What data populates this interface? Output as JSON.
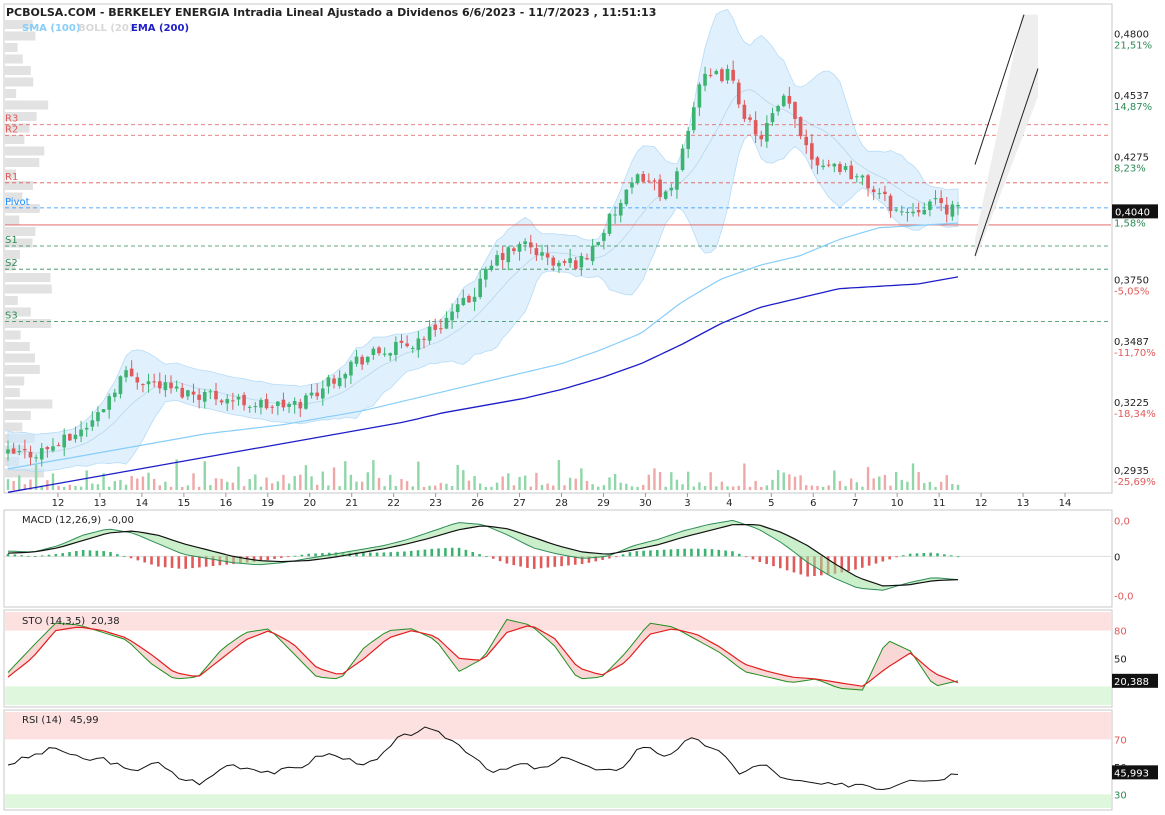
{
  "header": {
    "title": "PCBOLSA.COM - BERKELEY ENERGIA Intradia Lineal Ajustado a Dividenos 6/6/2023 - 11/7/2023 , 11:51:13",
    "legend": [
      {
        "label": "SMA (100)",
        "color": "#87cefa"
      },
      {
        "label": "BOLL (20)",
        "color": "#d8d8d8"
      },
      {
        "label": "EMA (200)",
        "color": "#1e1ec8"
      }
    ]
  },
  "colors": {
    "up": "#3cb371",
    "down": "#e05a5a",
    "sma": "#87cefa",
    "ema": "#1e1ec8",
    "boll": "#cfe8fb",
    "pivot_line": "#1e90ff",
    "res_line": "#e05a5a",
    "sup_line": "#2e8b57"
  },
  "chart_data": [
    {
      "type": "candlestick",
      "title": "BERKELEY ENERGIA",
      "x_tick_labels": [
        "12",
        "13",
        "14",
        "15",
        "16",
        "19",
        "20",
        "21",
        "22",
        "23",
        "26",
        "27",
        "28",
        "29",
        "30",
        "3",
        "4",
        "5",
        "6",
        "7",
        "10",
        "11",
        "12",
        "13",
        "14"
      ],
      "ylim": [
        0.285,
        0.49
      ],
      "y_ticks": [
        {
          "price": "0,4800",
          "pct": "21,51%",
          "value": 0.48,
          "pct_color": "#2e8b57"
        },
        {
          "price": "0,4537",
          "pct": "14,87%",
          "value": 0.4537,
          "pct_color": "#2e8b57"
        },
        {
          "price": "0,4275",
          "pct": "8,23%",
          "value": 0.4275,
          "pct_color": "#2e8b57"
        },
        {
          "price": "0,4040",
          "pct": "1,58%",
          "value": 0.404,
          "pct_color": "#2e8b57"
        },
        {
          "price": "0,3750",
          "pct": "-5,05%",
          "value": 0.375,
          "pct_color": "#e05a5a"
        },
        {
          "price": "0,3487",
          "pct": "-11,70%",
          "value": 0.3487,
          "pct_color": "#e05a5a"
        },
        {
          "price": "0,3225",
          "pct": "-18,34%",
          "value": 0.3225,
          "pct_color": "#e05a5a"
        },
        {
          "price": "0,2935",
          "pct": "-25,69%",
          "value": 0.2935,
          "pct_color": "#e05a5a"
        }
      ],
      "last_price_label": "0,4040",
      "last_price": 0.404,
      "reference_price": 0.3982,
      "pivot_levels": [
        {
          "name": "R3",
          "value": 0.441,
          "kind": "res"
        },
        {
          "name": "R2",
          "value": 0.4365,
          "kind": "res"
        },
        {
          "name": "R1",
          "value": 0.4162,
          "kind": "res"
        },
        {
          "name": "Pivot",
          "value": 0.4055,
          "kind": "pivot"
        },
        {
          "name": "S1",
          "value": 0.3892,
          "kind": "sup"
        },
        {
          "name": "S2",
          "value": 0.3793,
          "kind": "sup"
        },
        {
          "name": "S3",
          "value": 0.3569,
          "kind": "sup"
        }
      ],
      "session_keypoints": [
        0.3,
        0.301,
        0.306,
        0.315,
        0.335,
        0.331,
        0.327,
        0.326,
        0.323,
        0.321,
        0.321,
        0.33,
        0.34,
        0.344,
        0.347,
        0.356,
        0.366,
        0.384,
        0.39,
        0.381,
        0.383,
        0.402,
        0.42,
        0.409,
        0.459,
        0.463,
        0.434,
        0.452,
        0.426,
        0.423,
        0.414,
        0.403,
        0.408,
        0.404
      ],
      "sma100_keypoints": [
        0.294,
        0.297,
        0.3,
        0.303,
        0.306,
        0.309,
        0.311,
        0.313,
        0.316,
        0.319,
        0.323,
        0.327,
        0.331,
        0.335,
        0.339,
        0.345,
        0.352,
        0.365,
        0.375,
        0.381,
        0.385,
        0.392,
        0.397,
        0.398,
        0.399
      ],
      "ema200_keypoints": [
        0.284,
        0.287,
        0.29,
        0.293,
        0.296,
        0.299,
        0.302,
        0.305,
        0.308,
        0.311,
        0.314,
        0.318,
        0.321,
        0.324,
        0.328,
        0.333,
        0.339,
        0.347,
        0.356,
        0.363,
        0.367,
        0.371,
        0.372,
        0.373,
        0.376
      ]
    },
    {
      "type": "line",
      "title": "MACD (12,26,9)",
      "value_label": "-0,00",
      "ylim": [
        -0.0045,
        0.004
      ],
      "y_tick_labels": [
        "0,0",
        "0",
        "-0,0"
      ],
      "macd_keypoints": [
        0.0005,
        0.0004,
        0.001,
        0.002,
        0.0026,
        0.0022,
        0.0012,
        0.0002,
        -0.0002,
        -0.0006,
        -0.0008,
        -0.0006,
        -0.0002,
        0.0002,
        0.0006,
        0.001,
        0.0016,
        0.0024,
        0.0032,
        0.003,
        0.002,
        0.0008,
        0.0002,
        -0.0002,
        0.0,
        0.001,
        0.0016,
        0.0024,
        0.003,
        0.0034,
        0.0026,
        0.0012,
        -0.0006,
        -0.002,
        -0.003,
        -0.0032,
        -0.0025,
        -0.002,
        -0.0022
      ],
      "signal_keypoints": [
        0.0003,
        0.0004,
        0.0008,
        0.0015,
        0.0022,
        0.0024,
        0.002,
        0.0012,
        0.0006,
        0.0,
        -0.0004,
        -0.0005,
        -0.0004,
        -0.0001,
        0.0003,
        0.0007,
        0.0012,
        0.0018,
        0.0025,
        0.0029,
        0.0026,
        0.0018,
        0.001,
        0.0004,
        0.0002,
        0.0006,
        0.0011,
        0.0018,
        0.0024,
        0.003,
        0.003,
        0.0022,
        0.001,
        -0.0006,
        -0.002,
        -0.0028,
        -0.0027,
        -0.0023,
        -0.0022
      ]
    },
    {
      "type": "line",
      "title": "STO (14,3,5)",
      "value_label": "20,38",
      "last_value_label": "20,388",
      "ylim": [
        0,
        100
      ],
      "y_tick_labels": [
        "80",
        "50"
      ],
      "overbought": 80,
      "oversold": 20,
      "k_keypoints": [
        35,
        62,
        88,
        86,
        78,
        70,
        45,
        28,
        30,
        60,
        78,
        82,
        56,
        30,
        28,
        62,
        80,
        82,
        70,
        36,
        50,
        92,
        86,
        64,
        28,
        30,
        56,
        88,
        84,
        70,
        56,
        36,
        30,
        24,
        28,
        18,
        16,
        70,
        58,
        20,
        26
      ],
      "d_keypoints": [
        30,
        50,
        80,
        84,
        80,
        72,
        55,
        35,
        30,
        50,
        70,
        80,
        66,
        40,
        32,
        50,
        72,
        80,
        74,
        50,
        48,
        78,
        86,
        72,
        40,
        32,
        46,
        76,
        82,
        76,
        62,
        44,
        36,
        30,
        28,
        24,
        20,
        40,
        56,
        34,
        24
      ]
    },
    {
      "type": "line",
      "title": "RSI (14)",
      "value_label": "45,99",
      "last_value_label": "45,993",
      "ylim": [
        20,
        90
      ],
      "y_tick_labels": [
        "70",
        "50",
        "30"
      ],
      "overbought": 70,
      "oversold": 30,
      "keypoints": [
        52,
        58,
        64,
        55,
        56,
        46,
        54,
        42,
        38,
        52,
        49,
        46,
        50,
        60,
        55,
        52,
        70,
        78,
        72,
        60,
        45,
        52,
        48,
        58,
        48,
        46,
        66,
        58,
        70,
        64,
        46,
        52,
        40,
        38,
        36,
        38,
        34,
        42,
        40,
        46
      ]
    }
  ]
}
